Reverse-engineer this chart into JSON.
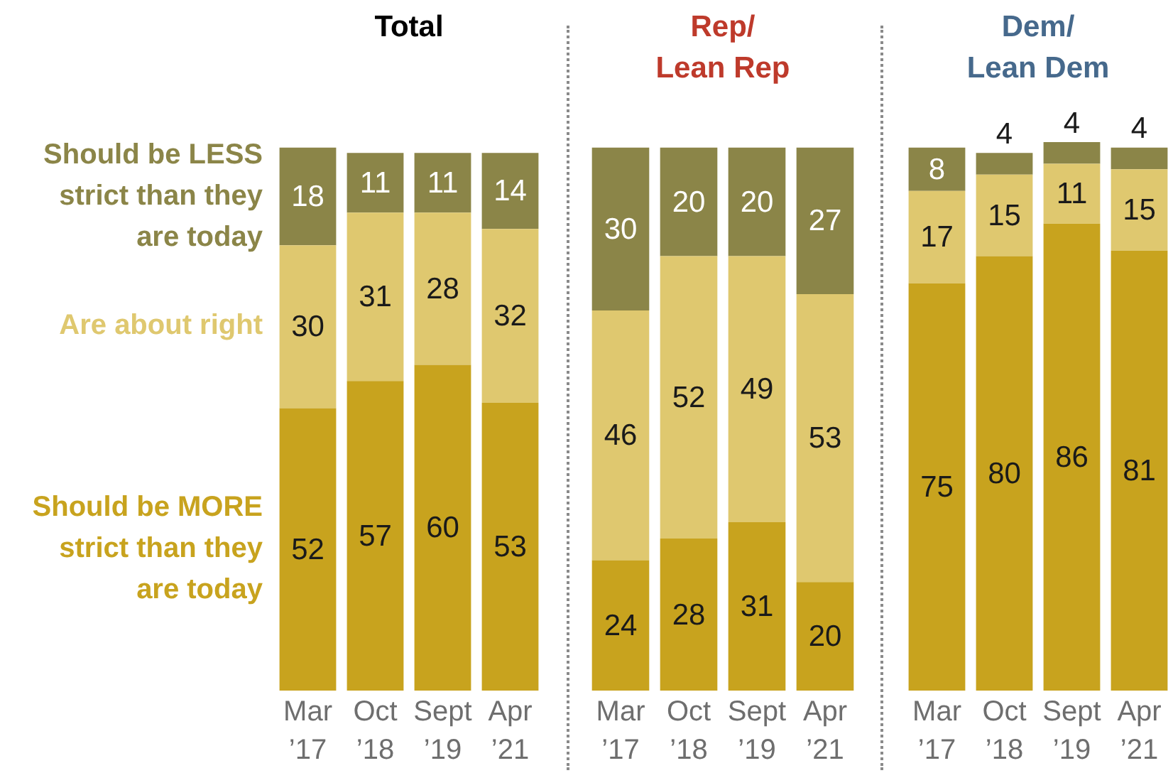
{
  "chart_data": [
    {
      "type": "bar",
      "title": "Total",
      "stacked": true,
      "data_labels": true,
      "tick_labels": "x",
      "categories": [
        "Mar ’17",
        "Oct ’18",
        "Sept ’19",
        "Apr ’21"
      ],
      "series": [
        {
          "name": "Should be MORE strict than they are today",
          "color": "#c8a31e",
          "values": [
            52,
            57,
            60,
            53
          ]
        },
        {
          "name": "Are about right",
          "color": "#dfc86f",
          "values": [
            30,
            31,
            28,
            32
          ]
        },
        {
          "name": "Should be LESS strict than they are today",
          "color": "#8b8548",
          "values": [
            18,
            11,
            11,
            14
          ]
        }
      ]
    },
    {
      "type": "bar",
      "title": "Rep/\nLean Rep",
      "stacked": true,
      "data_labels": true,
      "tick_labels": "x",
      "categories": [
        "Mar ’17",
        "Oct ’18",
        "Sept ’19",
        "Apr ’21"
      ],
      "series": [
        {
          "color": "#c8a31e",
          "values": [
            24,
            28,
            31,
            20
          ]
        },
        {
          "color": "#dfc86f",
          "values": [
            46,
            52,
            49,
            53
          ]
        },
        {
          "color": "#8b8548",
          "values": [
            30,
            20,
            20,
            27
          ]
        }
      ]
    },
    {
      "type": "bar",
      "title": "Dem/\nLean Dem",
      "stacked": true,
      "data_labels": true,
      "tick_labels": "x",
      "categories": [
        "Mar ’17",
        "Oct ’18",
        "Sept ’19",
        "Apr ’21"
      ],
      "series": [
        {
          "color": "#c8a31e",
          "values": [
            75,
            80,
            86,
            81
          ]
        },
        {
          "color": "#dfc86f",
          "values": [
            17,
            15,
            11,
            15
          ]
        },
        {
          "color": "#8b8548",
          "values": [
            8,
            4,
            4,
            4
          ]
        }
      ]
    }
  ]
}
